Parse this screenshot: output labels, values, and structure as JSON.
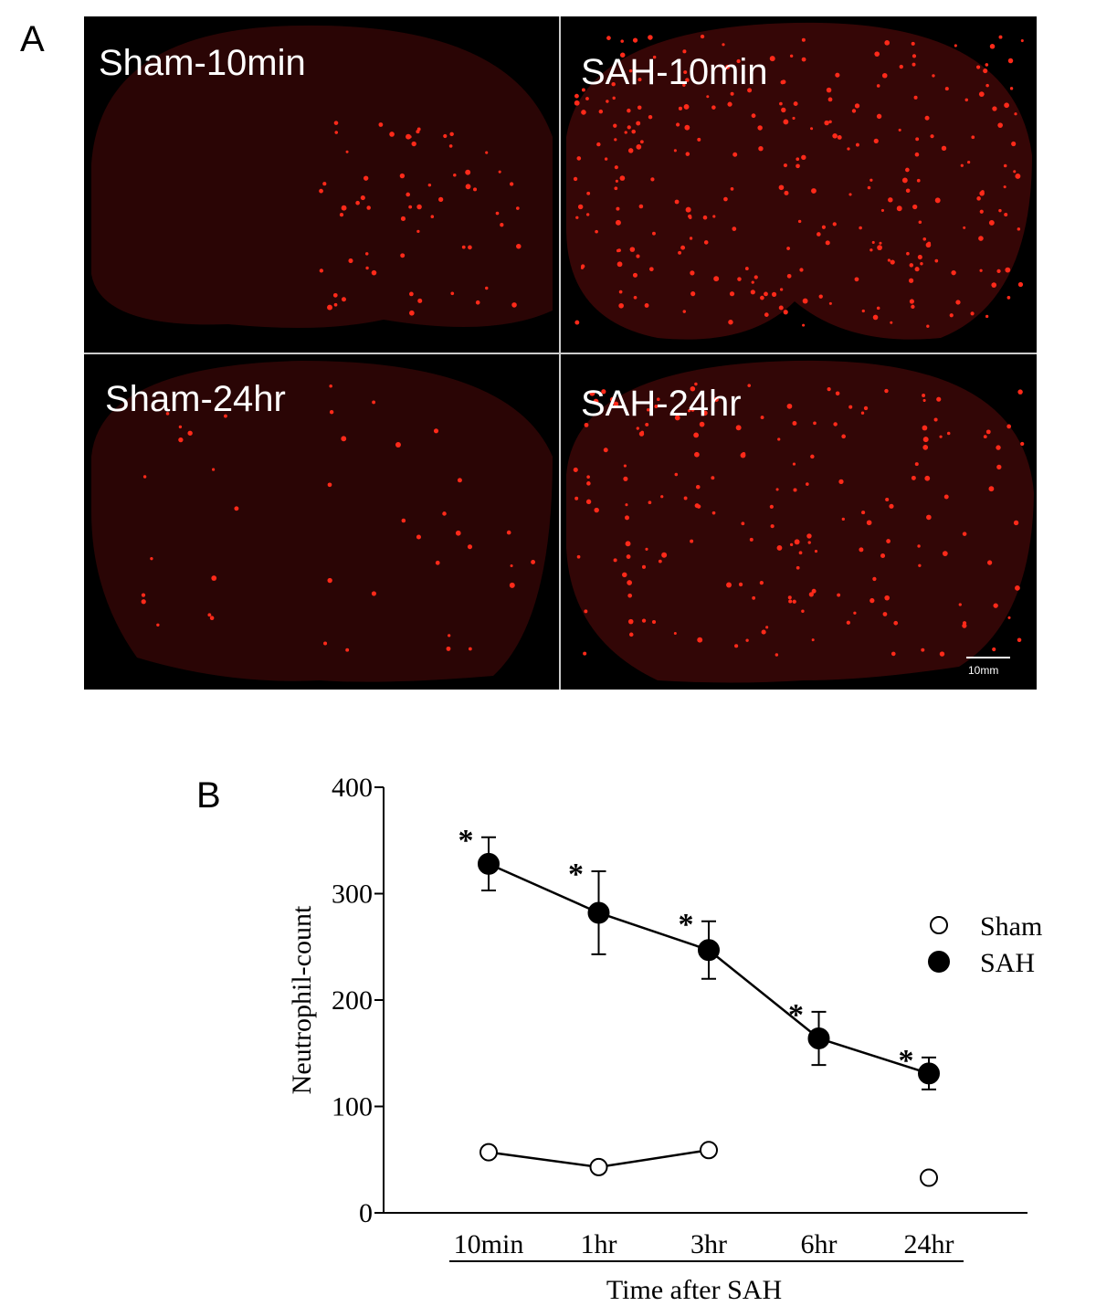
{
  "panel_labels": [
    "A",
    "B"
  ],
  "images": [
    {
      "label": "Sham-10min"
    },
    {
      "label": "SAH-10min"
    },
    {
      "label": "Sham-24hr"
    },
    {
      "label": "SAH-24hr"
    }
  ],
  "scale_bar": "10mm",
  "chart_data": {
    "type": "line",
    "y_label": "Neutrophil-count",
    "x_label": "Time after SAH",
    "categories": [
      "10min",
      "1hr",
      "3hr",
      "6hr",
      "24hr"
    ],
    "series": [
      {
        "name": "Sham",
        "color": "#000000",
        "marker": "open",
        "values": [
          57,
          43,
          59,
          null,
          33
        ]
      },
      {
        "name": "SAH",
        "color": "#000000",
        "marker": "filled",
        "values": [
          328,
          282,
          247,
          164,
          131
        ],
        "errors": [
          25,
          39,
          27,
          25,
          15
        ]
      }
    ],
    "significance": [
      "*",
      "*",
      "*",
      "*",
      "*"
    ],
    "ylim": [
      0,
      400
    ],
    "yticks": [
      0,
      100,
      200,
      300,
      400
    ]
  }
}
